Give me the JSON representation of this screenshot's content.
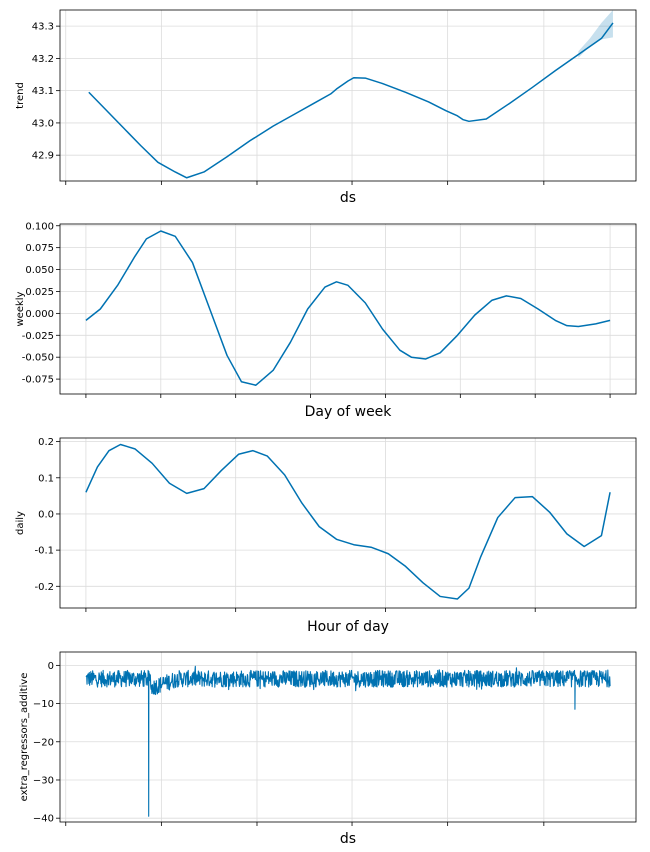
{
  "chart_data": [
    {
      "type": "line",
      "ylabel": "trend",
      "xlabel": "ds",
      "ylim": [
        42.82,
        43.35
      ],
      "yticks": [
        "42.9",
        "43.0",
        "43.1",
        "43.2",
        "43.3"
      ],
      "ytick_values": [
        42.9,
        43.0,
        43.1,
        43.2,
        43.3
      ],
      "xlim": [
        0,
        100
      ],
      "xtick_values": [
        1,
        17.6,
        34.2,
        50.7,
        67.3,
        84
      ],
      "grid": true,
      "line_color": "#0072B2",
      "band_color": "#0072B2",
      "x": [
        5,
        8,
        11,
        14,
        17,
        20,
        22,
        25,
        29,
        33,
        37,
        41,
        44,
        47,
        48,
        50,
        51,
        53,
        56,
        60,
        64,
        67,
        69,
        70,
        71,
        74,
        78,
        82,
        86,
        90,
        94,
        96
      ],
      "values": [
        43.095,
        43.04,
        42.985,
        42.93,
        42.878,
        42.848,
        42.83,
        42.848,
        42.895,
        42.945,
        42.99,
        43.03,
        43.06,
        43.09,
        43.105,
        43.13,
        43.14,
        43.139,
        43.122,
        43.095,
        43.065,
        43.038,
        43.022,
        43.01,
        43.005,
        43.012,
        43.06,
        43.11,
        43.162,
        43.212,
        43.262,
        43.31
      ],
      "band_x": [
        90,
        92,
        94,
        96
      ],
      "band_upper": [
        43.222,
        43.262,
        43.31,
        43.35
      ],
      "band_lower": [
        43.202,
        43.238,
        43.259,
        43.265
      ]
    },
    {
      "type": "line",
      "ylabel": "weekly",
      "xlabel": "Day of week",
      "ylim": [
        -0.092,
        0.102
      ],
      "yticks": [
        "0.100",
        "0.075",
        "0.050",
        "0.025",
        "0.000",
        "-0.025",
        "-0.050",
        "-0.075"
      ],
      "ytick_values": [
        0.1,
        0.075,
        0.05,
        0.025,
        0.0,
        -0.025,
        -0.05,
        -0.075
      ],
      "xlim": [
        0,
        100
      ],
      "xtick_values": [
        4.5,
        17.5,
        30.5,
        43.5,
        56.5,
        69.5,
        82.5,
        95.5
      ],
      "grid": true,
      "line_color": "#0072B2",
      "x": [
        4.5,
        7,
        10,
        13,
        15,
        17.5,
        20,
        23,
        26,
        29,
        31.5,
        34,
        37,
        40,
        43,
        46,
        48,
        50,
        53,
        56,
        59,
        61,
        63.5,
        66,
        69,
        72,
        75,
        77.5,
        80,
        83,
        86,
        88,
        90,
        93,
        95.5
      ],
      "values": [
        -0.008,
        0.005,
        0.032,
        0.065,
        0.085,
        0.094,
        0.088,
        0.058,
        0.005,
        -0.048,
        -0.078,
        -0.082,
        -0.065,
        -0.033,
        0.005,
        0.03,
        0.036,
        0.032,
        0.012,
        -0.018,
        -0.042,
        -0.05,
        -0.052,
        -0.045,
        -0.025,
        -0.002,
        0.015,
        0.02,
        0.017,
        0.005,
        -0.008,
        -0.014,
        -0.015,
        -0.012,
        -0.008
      ]
    },
    {
      "type": "line",
      "ylabel": "daily",
      "xlabel": "Hour of day",
      "ylim": [
        -0.26,
        0.21
      ],
      "yticks": [
        "0.2",
        "0.1",
        "0.0",
        "-0.1",
        "-0.2"
      ],
      "ytick_values": [
        0.2,
        0.1,
        0.0,
        -0.1,
        -0.2
      ],
      "xlim": [
        0,
        100
      ],
      "xtick_values": [
        4.5,
        30.5,
        56.5,
        82.5
      ],
      "grid": true,
      "line_color": "#0072B2",
      "x": [
        4.5,
        6.5,
        8.5,
        10.5,
        13,
        16,
        19,
        22,
        25,
        28,
        31,
        33.5,
        36,
        39,
        42,
        45,
        48,
        51,
        54,
        57,
        60,
        63,
        66,
        69,
        71,
        73,
        76,
        79,
        82,
        85,
        88,
        91,
        94,
        95.5
      ],
      "values": [
        0.06,
        0.13,
        0.175,
        0.192,
        0.18,
        0.14,
        0.085,
        0.057,
        0.07,
        0.12,
        0.165,
        0.175,
        0.16,
        0.108,
        0.03,
        -0.035,
        -0.07,
        -0.085,
        -0.092,
        -0.11,
        -0.145,
        -0.19,
        -0.228,
        -0.235,
        -0.205,
        -0.12,
        -0.01,
        0.045,
        0.048,
        0.005,
        -0.055,
        -0.09,
        -0.06,
        0.06
      ]
    },
    {
      "type": "line",
      "ylabel": "extra_regressors_additive",
      "xlabel": "ds",
      "ylim": [
        -41,
        3.5
      ],
      "yticks": [
        "0",
        "−10",
        "−20",
        "−30",
        "−40"
      ],
      "ytick_values": [
        0,
        -10,
        -20,
        -30,
        -40
      ],
      "xlim": [
        0,
        100
      ],
      "xtick_values": [
        1,
        17.6,
        34.2,
        50.7,
        67.3,
        84
      ],
      "grid": true,
      "line_color": "#0072B2",
      "x_start": 4.5,
      "x_end": 95.5,
      "n_points": 1400,
      "baseline": -3.5,
      "noise_amplitude": 2.2,
      "spike_x": 15.4,
      "spike_value": -39.5,
      "secondary_spike_x": 89.4,
      "secondary_spike_value": -11.5,
      "dip_region": [
        15.8,
        20.5
      ],
      "dip_value": -6.5
    }
  ]
}
